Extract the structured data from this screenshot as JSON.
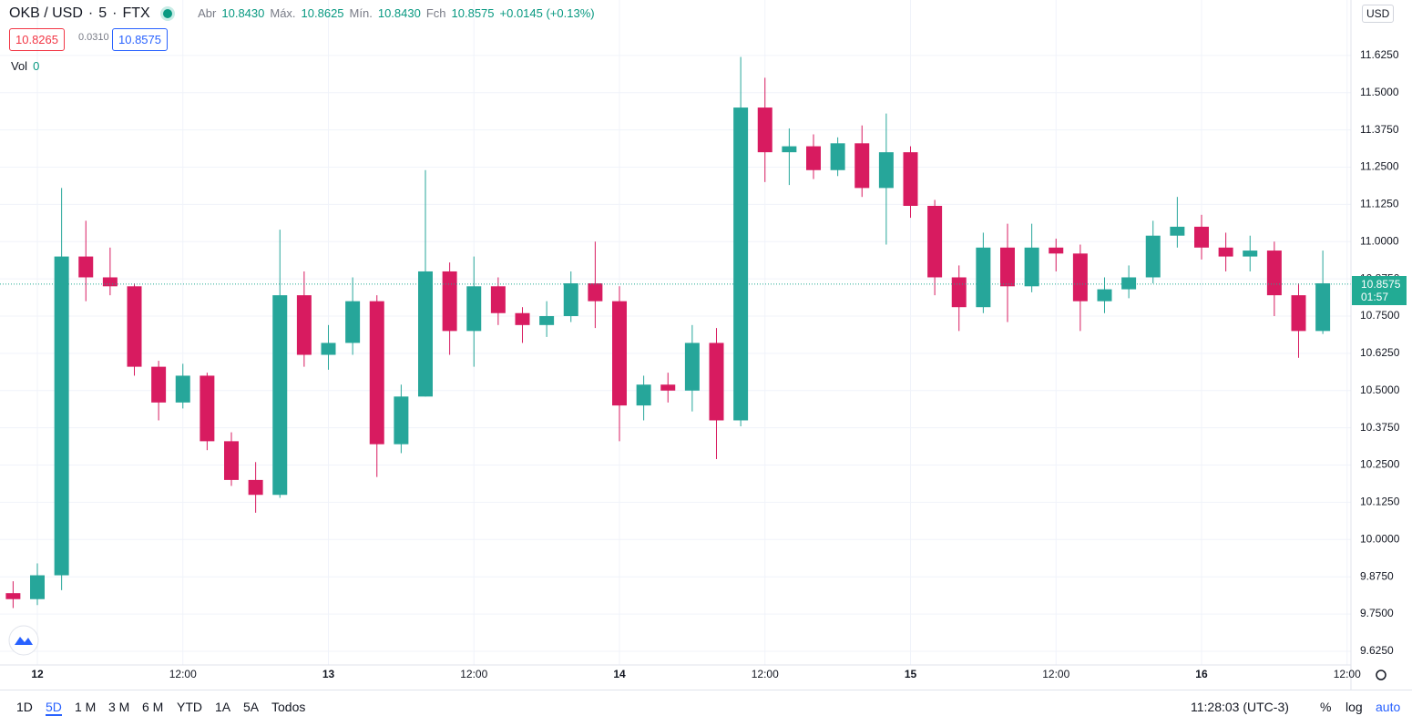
{
  "header": {
    "symbol": "OKB / USD",
    "interval": "5",
    "exchange": "FTX",
    "open_label": "Abr",
    "open": "10.8430",
    "high_label": "Máx.",
    "high": "10.8625",
    "low_label": "Mín.",
    "low": "10.8430",
    "close_label": "Fch",
    "close": "10.8575",
    "change": "+0.0145 (+0.13%)",
    "bid": "10.8265",
    "spread": "0.0310",
    "ask": "10.8575",
    "volume_label": "Vol",
    "volume": "0",
    "currency": "USD"
  },
  "toolbar": {
    "ranges": [
      "1D",
      "5D",
      "1 M",
      "3 M",
      "6 M",
      "YTD",
      "1A",
      "5A",
      "Todos"
    ],
    "clock": "11:28:03 (UTC-3)",
    "percent": "%",
    "log": "log",
    "auto": "auto"
  },
  "chart_data": {
    "type": "candlestick",
    "x": [
      -2,
      0,
      2,
      4,
      6,
      8,
      10,
      12,
      14,
      16,
      18,
      20,
      22,
      24,
      26,
      28,
      30,
      32,
      34,
      36,
      38,
      40,
      42,
      44,
      46,
      48,
      50,
      52,
      54,
      56,
      58,
      60,
      62,
      64,
      66,
      68,
      70,
      72,
      74,
      76,
      78,
      80,
      82,
      84,
      86,
      88,
      90,
      92,
      94,
      96,
      98,
      100,
      102,
      104,
      106
    ],
    "open": [
      9.82,
      9.8,
      9.88,
      10.95,
      10.88,
      10.85,
      10.58,
      10.46,
      10.55,
      10.33,
      10.2,
      10.15,
      10.82,
      10.62,
      10.66,
      10.8,
      10.32,
      10.48,
      10.9,
      10.7,
      10.85,
      10.76,
      10.72,
      10.75,
      10.86,
      10.8,
      10.45,
      10.52,
      10.5,
      10.66,
      10.4,
      11.45,
      11.3,
      11.32,
      11.24,
      11.33,
      11.18,
      11.3,
      11.12,
      10.88,
      10.78,
      10.98,
      10.85,
      10.98,
      10.96,
      10.8,
      10.84,
      10.88,
      11.02,
      11.05,
      10.98,
      10.95,
      10.97,
      10.82,
      10.7
    ],
    "high": [
      9.86,
      9.92,
      11.18,
      11.07,
      10.98,
      10.86,
      10.6,
      10.59,
      10.56,
      10.36,
      10.26,
      11.04,
      10.9,
      10.72,
      10.88,
      10.82,
      10.52,
      11.24,
      10.93,
      10.95,
      10.88,
      10.78,
      10.8,
      10.9,
      11.0,
      10.85,
      10.55,
      10.56,
      10.72,
      10.71,
      11.62,
      11.55,
      11.38,
      11.36,
      11.35,
      11.39,
      11.43,
      11.32,
      11.14,
      10.92,
      11.03,
      11.06,
      11.06,
      11.01,
      10.99,
      10.88,
      10.92,
      11.07,
      11.15,
      11.09,
      11.03,
      11.02,
      11.0,
      10.86,
      10.97
    ],
    "low": [
      9.77,
      9.78,
      9.83,
      10.8,
      10.82,
      10.55,
      10.4,
      10.44,
      10.3,
      10.18,
      10.09,
      10.14,
      10.58,
      10.57,
      10.62,
      10.21,
      10.29,
      10.48,
      10.62,
      10.58,
      10.72,
      10.66,
      10.68,
      10.73,
      10.71,
      10.33,
      10.4,
      10.46,
      10.43,
      10.27,
      10.38,
      11.2,
      11.19,
      11.21,
      11.22,
      11.15,
      10.99,
      11.08,
      10.82,
      10.7,
      10.76,
      10.73,
      10.83,
      10.9,
      10.7,
      10.76,
      10.81,
      10.86,
      10.98,
      10.94,
      10.9,
      10.9,
      10.75,
      10.61,
      10.69
    ],
    "close": [
      9.8,
      9.88,
      10.95,
      10.88,
      10.85,
      10.58,
      10.46,
      10.55,
      10.33,
      10.2,
      10.15,
      10.82,
      10.62,
      10.66,
      10.8,
      10.32,
      10.48,
      10.9,
      10.7,
      10.85,
      10.76,
      10.72,
      10.75,
      10.86,
      10.8,
      10.45,
      10.52,
      10.5,
      10.66,
      10.4,
      11.45,
      11.3,
      11.32,
      11.24,
      11.33,
      11.18,
      11.3,
      11.12,
      10.88,
      10.78,
      10.98,
      10.85,
      10.98,
      10.96,
      10.8,
      10.84,
      10.88,
      11.02,
      11.05,
      10.98,
      10.95,
      10.97,
      10.82,
      10.7,
      10.86
    ],
    "up_color": "#26a69a",
    "down_color": "#d81b60",
    "last_price": 10.8575,
    "last_price_color": "#22ab94",
    "countdown": "01:57",
    "xlim": [
      -3.08,
      108.32
    ],
    "ylim": [
      9.579,
      11.811
    ],
    "xticks": [
      {
        "value": 0,
        "label": "12"
      },
      {
        "value": 12,
        "label": "12:00"
      },
      {
        "value": 24,
        "label": "13"
      },
      {
        "value": 36,
        "label": "12:00"
      },
      {
        "value": 48,
        "label": "14"
      },
      {
        "value": 60,
        "label": "12:00"
      },
      {
        "value": 72,
        "label": "15"
      },
      {
        "value": 84,
        "label": "12:00"
      },
      {
        "value": 96,
        "label": "16"
      },
      {
        "value": 108,
        "label": "12:00"
      }
    ],
    "yticks": [
      {
        "value": 9.625,
        "label": "9.6250"
      },
      {
        "value": 9.75,
        "label": "9.7500"
      },
      {
        "value": 9.875,
        "label": "9.8750"
      },
      {
        "value": 10,
        "label": "10.0000"
      },
      {
        "value": 10.125,
        "label": "10.1250"
      },
      {
        "value": 10.25,
        "label": "10.2500"
      },
      {
        "value": 10.375,
        "label": "10.3750"
      },
      {
        "value": 10.5,
        "label": "10.5000"
      },
      {
        "value": 10.625,
        "label": "10.6250"
      },
      {
        "value": 10.75,
        "label": "10.7500"
      },
      {
        "value": 10.875,
        "label": "10.8750"
      },
      {
        "value": 11,
        "label": "11.0000"
      },
      {
        "value": 11.125,
        "label": "11.1250"
      },
      {
        "value": 11.25,
        "label": "11.2500"
      },
      {
        "value": 11.375,
        "label": "11.3750"
      },
      {
        "value": 11.5,
        "label": "11.5000"
      },
      {
        "value": 11.625,
        "label": "11.6250"
      }
    ],
    "grid": true
  }
}
